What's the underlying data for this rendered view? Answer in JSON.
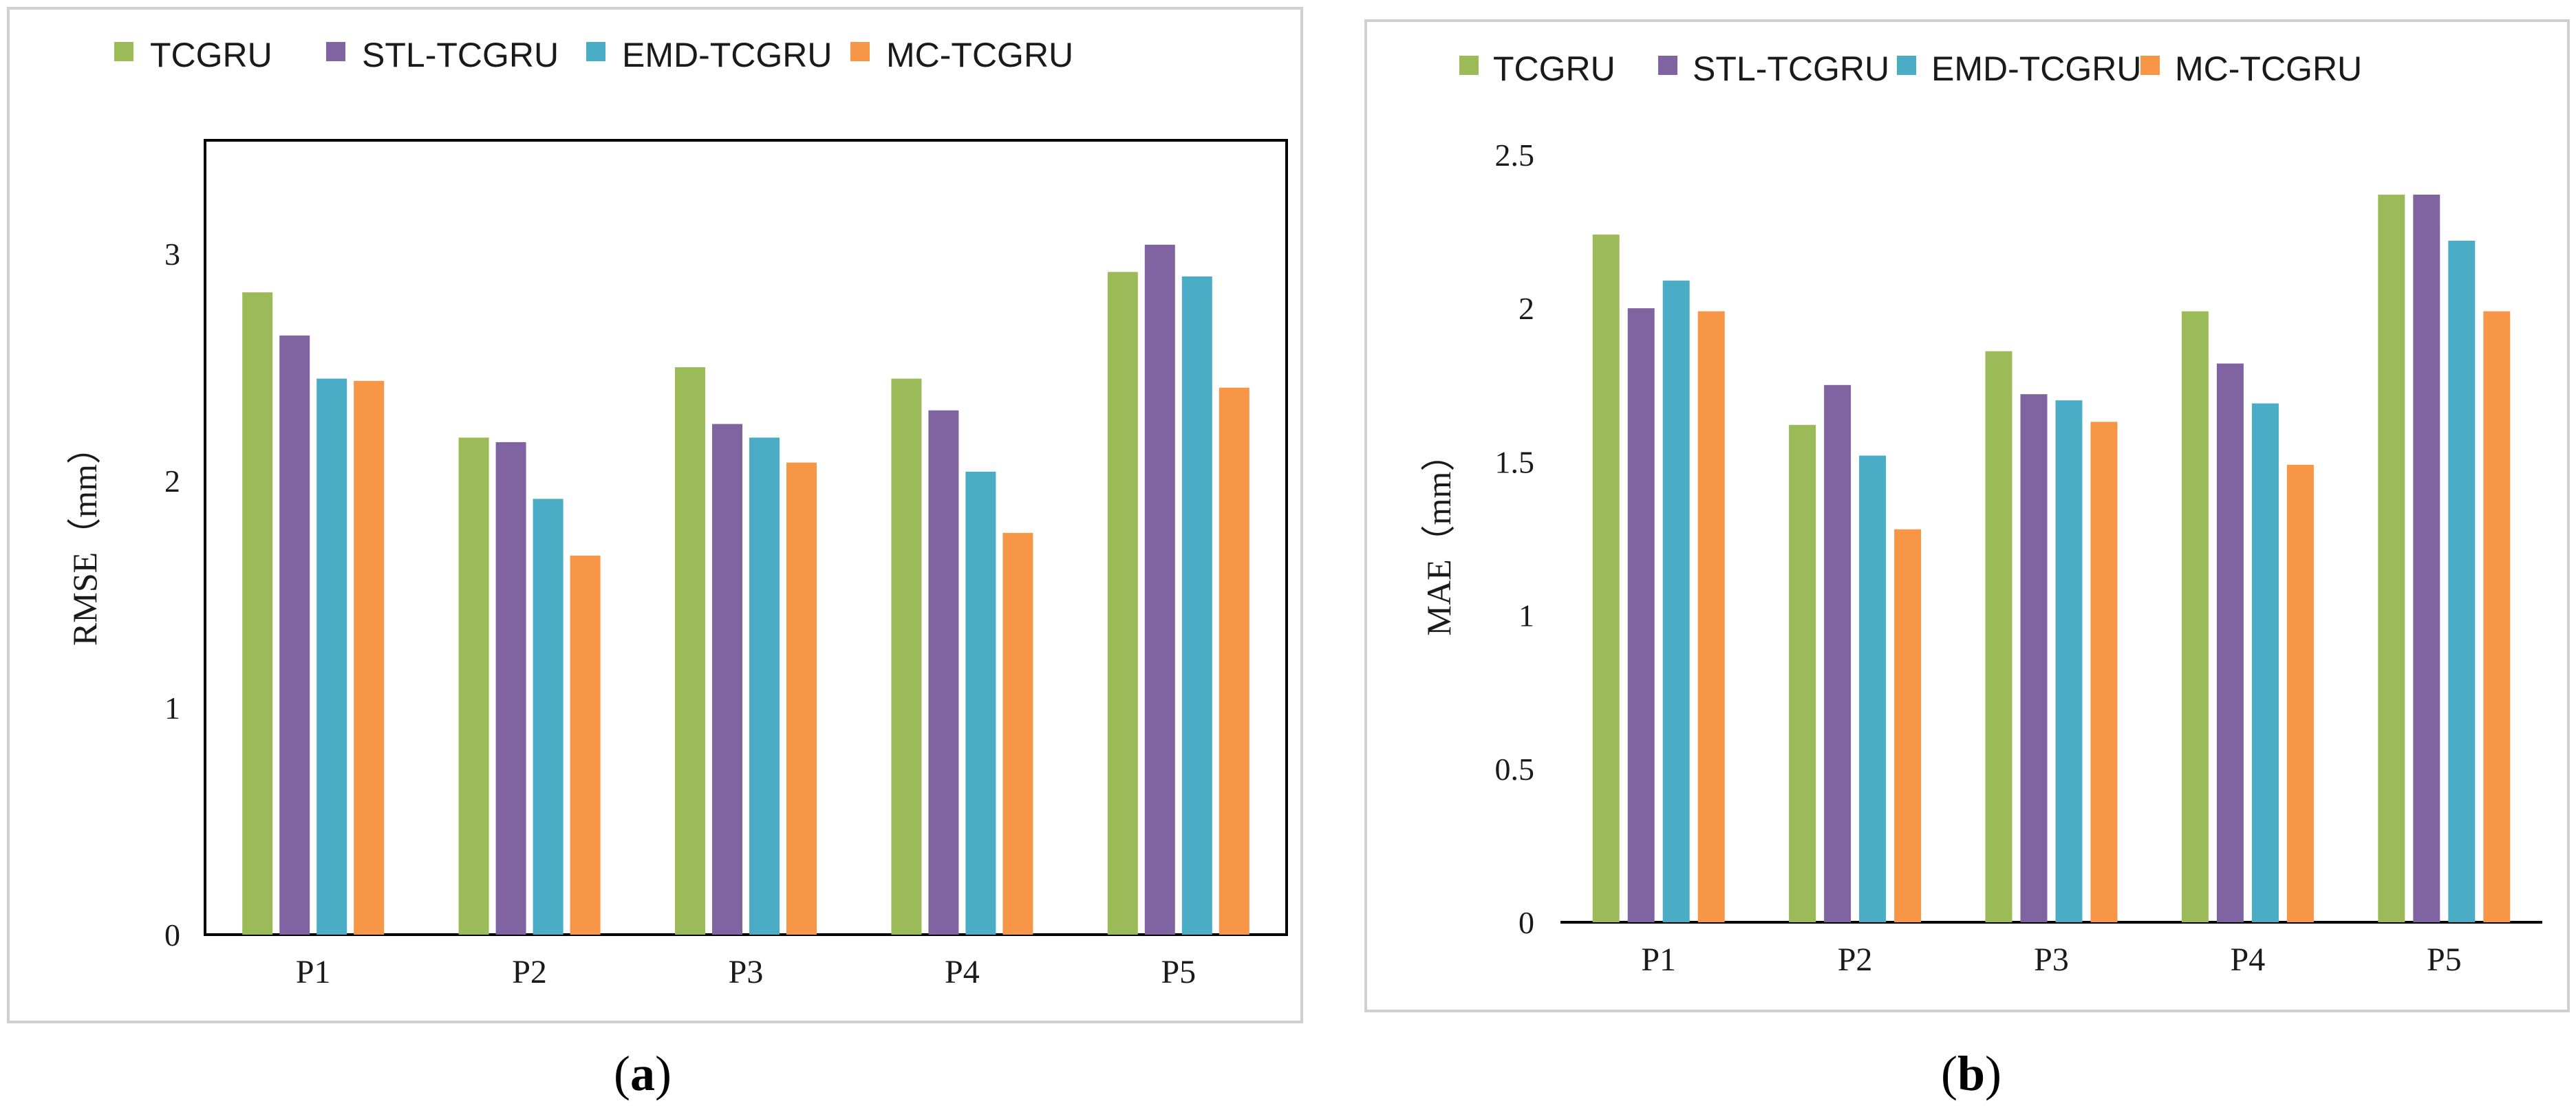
{
  "chart_data": [
    {
      "type": "bar",
      "panel": "a",
      "categories": [
        "P1",
        "P2",
        "P3",
        "P4",
        "P5"
      ],
      "series": [
        {
          "name": "TCGRU",
          "color": "#9bbb59",
          "values": [
            2.83,
            2.19,
            2.5,
            2.45,
            2.92
          ]
        },
        {
          "name": "STL-TCGRU",
          "color": "#8064a2",
          "values": [
            2.64,
            2.17,
            2.25,
            2.31,
            3.04
          ]
        },
        {
          "name": "EMD-TCGRU",
          "color": "#4bacc6",
          "values": [
            2.45,
            1.92,
            2.19,
            2.04,
            2.9
          ]
        },
        {
          "name": "MC-TCGRU",
          "color": "#f79646",
          "values": [
            2.44,
            1.67,
            2.08,
            1.77,
            2.41
          ]
        }
      ],
      "yticks": [
        "0",
        "1",
        "2",
        "3"
      ],
      "ylim": [
        0,
        3.5
      ],
      "ytick_values": [
        0,
        1,
        2,
        3
      ],
      "xlabel": "",
      "ylabel": "RMSE（mm）",
      "legend": "top",
      "caption_open": "(",
      "caption_letter": "a",
      "caption_close": ")"
    },
    {
      "type": "bar",
      "panel": "b",
      "categories": [
        "P1",
        "P2",
        "P3",
        "P4",
        "P5"
      ],
      "series": [
        {
          "name": "TCGRU",
          "color": "#9bbb59",
          "values": [
            2.24,
            1.62,
            1.86,
            1.99,
            2.37
          ]
        },
        {
          "name": "STL-TCGRU",
          "color": "#8064a2",
          "values": [
            2.0,
            1.75,
            1.72,
            1.82,
            2.37
          ]
        },
        {
          "name": "EMD-TCGRU",
          "color": "#4bacc6",
          "values": [
            2.09,
            1.52,
            1.7,
            1.69,
            2.22
          ]
        },
        {
          "name": "MC-TCGRU",
          "color": "#f79646",
          "values": [
            1.99,
            1.28,
            1.63,
            1.49,
            1.99
          ]
        }
      ],
      "yticks": [
        "0",
        "0.5",
        "1",
        "1.5",
        "2",
        "2.5"
      ],
      "ylim": [
        0,
        2.5
      ],
      "ytick_values": [
        0,
        0.5,
        1,
        1.5,
        2,
        2.5
      ],
      "xlabel": "",
      "ylabel": "MAE（mm）",
      "legend": "top",
      "caption_open": "(",
      "caption_letter": "b",
      "caption_close": ")"
    }
  ]
}
